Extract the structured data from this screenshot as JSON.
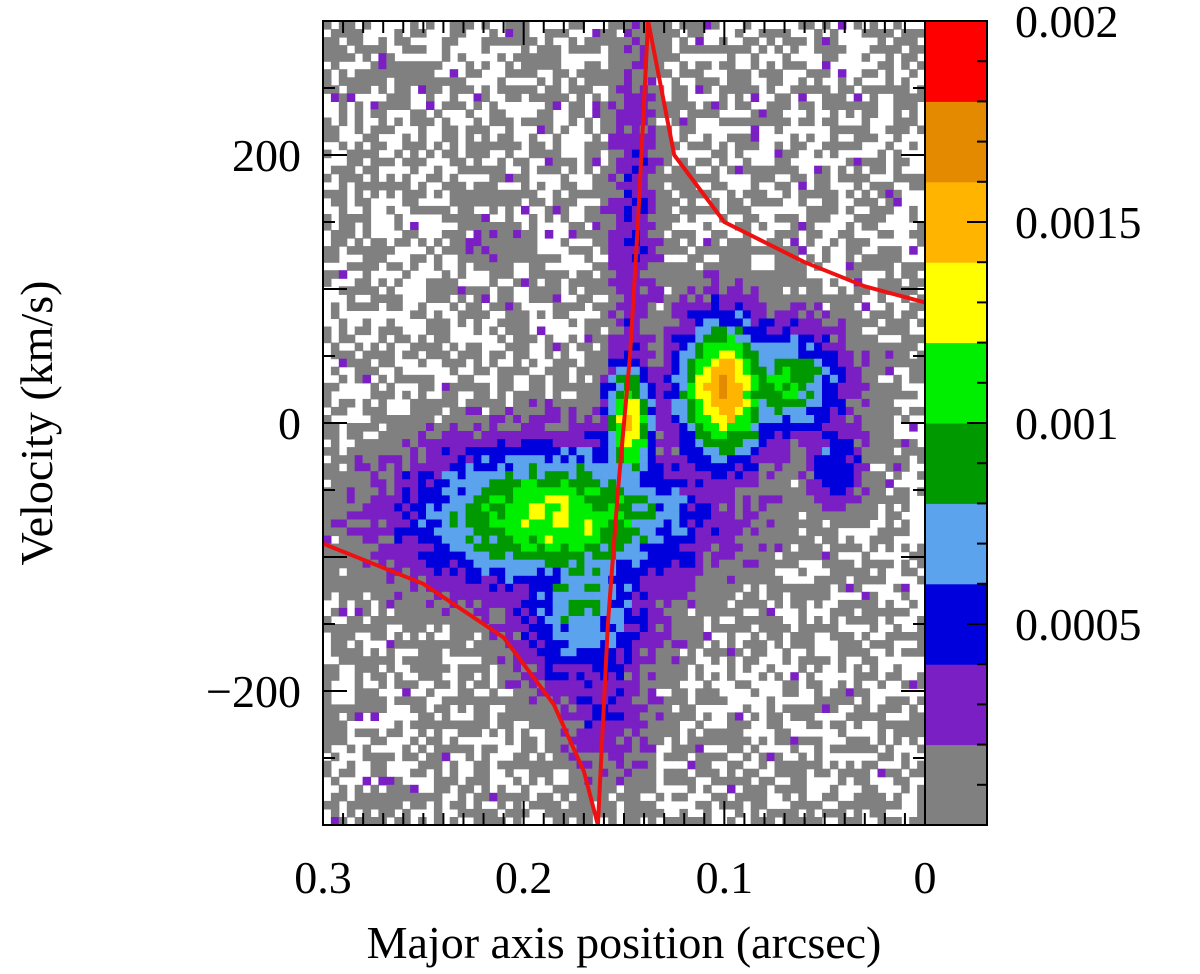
{
  "chart_data": {
    "type": "heatmap",
    "title": "",
    "xlabel": "Major axis position (arcsec)",
    "ylabel": "Velocity (km/s)",
    "x_reversed": true,
    "xlim": [
      0.3,
      0.0
    ],
    "ylim": [
      -300,
      300
    ],
    "x_ticks": [
      {
        "value": 0.3,
        "label": "0.3"
      },
      {
        "value": 0.2,
        "label": "0.2"
      },
      {
        "value": 0.1,
        "label": "0.1"
      },
      {
        "value": 0.0,
        "label": "0"
      }
    ],
    "y_ticks": [
      {
        "value": 200,
        "label": "200"
      },
      {
        "value": 0,
        "label": "0"
      },
      {
        "value": -200,
        "label": "−200"
      }
    ],
    "colorbar": {
      "range": [
        0.0,
        0.002
      ],
      "labels": [
        {
          "value": 0.002,
          "label": "0.002"
        },
        {
          "value": 0.0015,
          "label": "0.0015"
        },
        {
          "value": 0.001,
          "label": "0.001"
        },
        {
          "value": 0.0005,
          "label": "0.0005"
        }
      ],
      "levels": [
        "#808080",
        "#7a1fc4",
        "#0000dd",
        "#5ba3ec",
        "#009900",
        "#00ee00",
        "#ffff00",
        "#ffb400",
        "#e48a00",
        "#ff0000"
      ]
    },
    "emission_blobs": [
      {
        "x": 0.215,
        "v": 135,
        "dx": 0.012,
        "dv": 18,
        "level": 1
      },
      {
        "x": 0.185,
        "v": -70,
        "dx": 0.06,
        "dv": 45,
        "level": 6
      },
      {
        "x": 0.17,
        "v": -130,
        "dx": 0.03,
        "dv": 60,
        "level": 4
      },
      {
        "x": 0.147,
        "v": 0,
        "dx": 0.01,
        "dv": 40,
        "level": 7
      },
      {
        "x": 0.145,
        "v": 150,
        "dx": 0.01,
        "dv": 120,
        "level": 2
      },
      {
        "x": 0.1,
        "v": 25,
        "dx": 0.02,
        "dv": 45,
        "level": 8
      },
      {
        "x": 0.07,
        "v": 30,
        "dx": 0.025,
        "dv": 35,
        "level": 5
      },
      {
        "x": 0.045,
        "v": -30,
        "dx": 0.012,
        "dv": 30,
        "level": 3
      },
      {
        "x": 0.16,
        "v": -210,
        "dx": 0.02,
        "dv": 45,
        "level": 2
      }
    ],
    "model_curves": [
      {
        "color": "#ee1111",
        "points": [
          [
            0.3,
            -90
          ],
          [
            0.25,
            -120
          ],
          [
            0.21,
            -160
          ],
          [
            0.185,
            -210
          ],
          [
            0.17,
            -260
          ],
          [
            0.163,
            -300
          ]
        ]
      },
      {
        "color": "#ee1111",
        "points": [
          [
            0.163,
            -300
          ],
          [
            0.158,
            -150
          ],
          [
            0.153,
            -50
          ],
          [
            0.147,
            50
          ],
          [
            0.143,
            150
          ],
          [
            0.138,
            300
          ]
        ]
      },
      {
        "color": "#ee1111",
        "points": [
          [
            0.138,
            300
          ],
          [
            0.125,
            200
          ],
          [
            0.1,
            150
          ],
          [
            0.06,
            120
          ],
          [
            0.03,
            102
          ],
          [
            0.0,
            90
          ]
        ]
      }
    ]
  }
}
